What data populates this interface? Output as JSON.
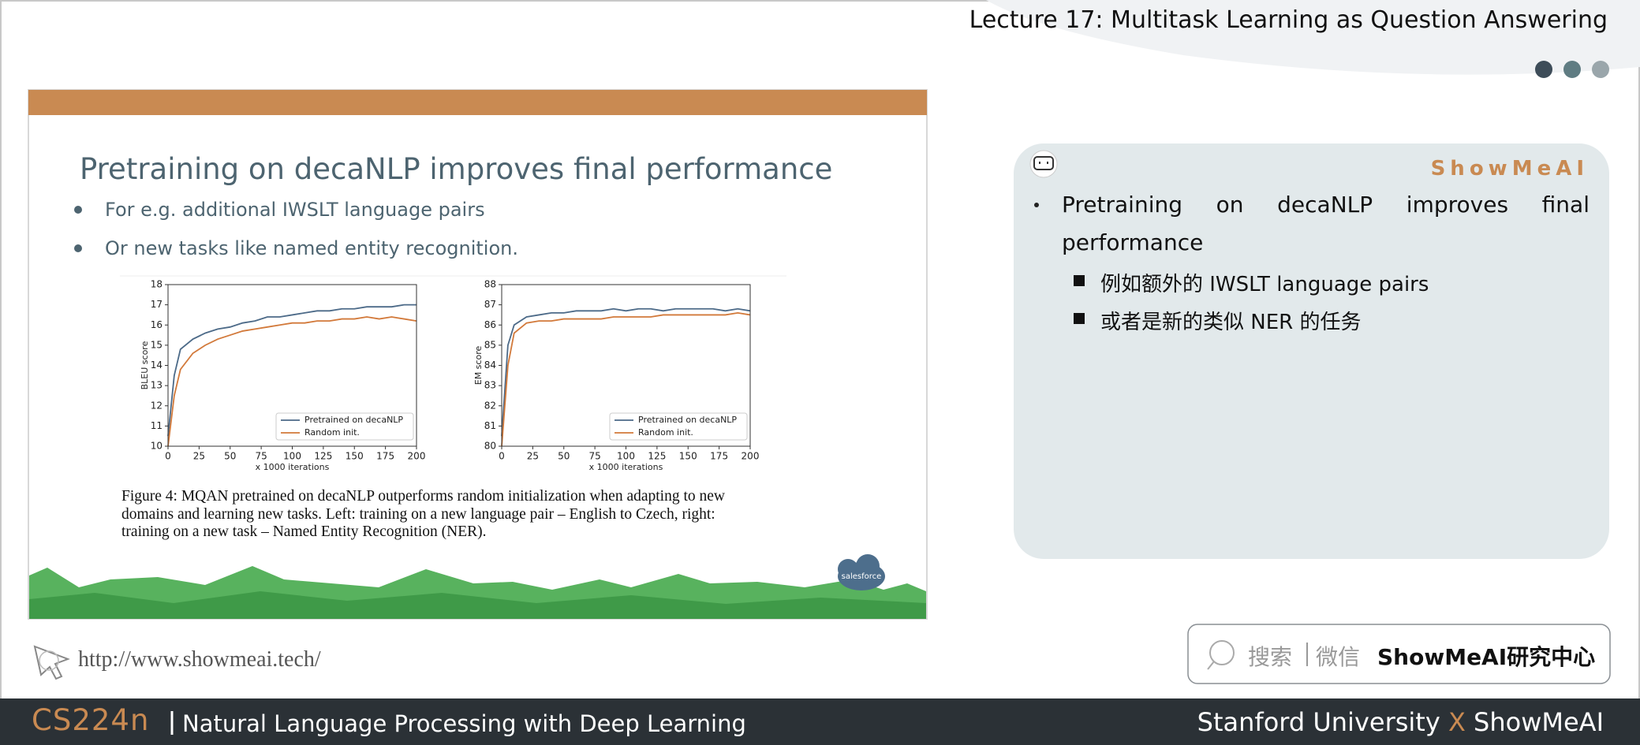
{
  "header": {
    "title": "Lecture 17: Multitask Learning as Question Answering"
  },
  "slide": {
    "title": "Pretraining on decaNLP improves final performance",
    "bullets": [
      "For e.g. additional IWSLT language pairs",
      "Or new tasks like named entity recognition."
    ],
    "caption": [
      "Figure 4: MQAN pretrained on decaNLP outperforms random initialization when adapting to new",
      "domains and learning new tasks. Left: training on a new language pair – English to Czech, right:",
      "training on a new task – Named Entity Recognition (NER)."
    ],
    "logo": "salesforce"
  },
  "chart_data": [
    {
      "type": "line",
      "x": [
        0,
        5,
        10,
        20,
        30,
        40,
        50,
        60,
        70,
        80,
        90,
        100,
        110,
        120,
        130,
        140,
        150,
        160,
        170,
        180,
        190,
        200
      ],
      "series": [
        {
          "name": "Pretrained on decaNLP",
          "color": "#4c6a88",
          "values": [
            10.5,
            13.5,
            14.8,
            15.3,
            15.6,
            15.8,
            15.9,
            16.1,
            16.2,
            16.4,
            16.4,
            16.5,
            16.6,
            16.7,
            16.7,
            16.8,
            16.8,
            16.9,
            16.9,
            16.9,
            17.0,
            17.0
          ]
        },
        {
          "name": "Random init.",
          "color": "#d2793a",
          "values": [
            10,
            12.5,
            13.8,
            14.6,
            15.0,
            15.3,
            15.5,
            15.7,
            15.8,
            15.9,
            16.0,
            16.1,
            16.1,
            16.2,
            16.2,
            16.3,
            16.3,
            16.4,
            16.3,
            16.4,
            16.3,
            16.2
          ]
        }
      ],
      "xlabel": "x 1000 iterations",
      "ylabel": "BLEU score",
      "xlim": [
        0,
        200
      ],
      "ylim": [
        10,
        18
      ],
      "xticks": [
        0,
        25,
        50,
        75,
        100,
        125,
        150,
        175,
        200
      ],
      "yticks": [
        10,
        11,
        12,
        13,
        14,
        15,
        16,
        17,
        18
      ],
      "legend": "lower right"
    },
    {
      "type": "line",
      "x": [
        0,
        5,
        10,
        20,
        30,
        40,
        50,
        60,
        70,
        80,
        90,
        100,
        110,
        120,
        130,
        140,
        150,
        160,
        170,
        180,
        190,
        200
      ],
      "series": [
        {
          "name": "Pretrained on decaNLP",
          "color": "#4c6a88",
          "values": [
            80.5,
            85.0,
            86.0,
            86.4,
            86.5,
            86.6,
            86.6,
            86.7,
            86.7,
            86.7,
            86.8,
            86.7,
            86.8,
            86.8,
            86.7,
            86.8,
            86.8,
            86.8,
            86.8,
            86.7,
            86.8,
            86.7
          ]
        },
        {
          "name": "Random init.",
          "color": "#d2793a",
          "values": [
            80.0,
            84.0,
            85.6,
            86.1,
            86.2,
            86.2,
            86.3,
            86.3,
            86.3,
            86.3,
            86.4,
            86.4,
            86.4,
            86.4,
            86.5,
            86.5,
            86.5,
            86.5,
            86.5,
            86.5,
            86.6,
            86.5
          ]
        }
      ],
      "xlabel": "x 1000 iterations",
      "ylabel": "EM score",
      "xlim": [
        0,
        200
      ],
      "ylim": [
        80,
        88
      ],
      "xticks": [
        0,
        25,
        50,
        75,
        100,
        125,
        150,
        175,
        200
      ],
      "yticks": [
        80,
        81,
        82,
        83,
        84,
        85,
        86,
        87,
        88
      ],
      "legend": "lower right"
    }
  ],
  "notes": {
    "brand": "ShowMeAI",
    "bullet": "Pretraining on decaNLP improves final performance",
    "sub_bullets": [
      "例如额外的 IWSLT language pairs",
      "或者是新的类似 NER 的任务"
    ]
  },
  "footer": {
    "url": "http://www.showmeai.tech/",
    "search": {
      "left": "搜索",
      "right": "微信",
      "name": "ShowMeAI研究中心"
    },
    "course": "CS224n",
    "course_title": "Natural Language Processing with Deep Learning",
    "org": "Stanford University",
    "x": "X",
    "partner": "ShowMeAI"
  }
}
